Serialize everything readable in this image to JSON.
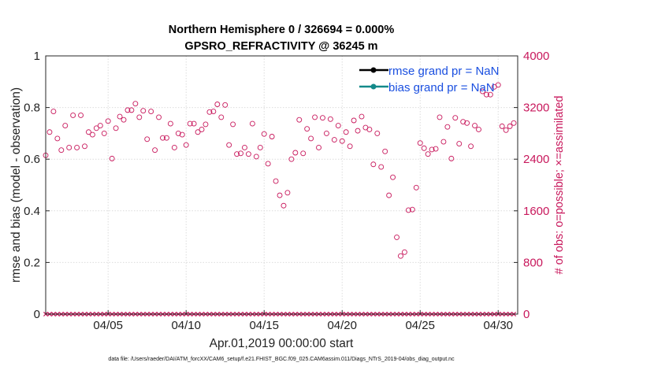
{
  "title_line1": "Northern Hemisphere 0 / 326694 = 0.000%",
  "title_line2": "GPSRO_REFRACTIVITY @ 36245 m",
  "footer": "data file: /Users/raeder/DAI/ATM_forcXX/CAM6_setup/f.e21.FHIST_BGC.f09_025.CAM6assim.011/Diags_NTrS_2019-04/obs_diag_output.nc",
  "chart_data": {
    "type": "scatter",
    "xlabel": "Apr.01,2019 00:00:00 start",
    "ylabel": "rmse and bias (model - observation)",
    "ylabel_right": "# of obs: o=possible; ×=assimilated",
    "xlim": [
      0.5,
      30.75
    ],
    "ylim": [
      0,
      1
    ],
    "ylim_right": [
      0,
      4000
    ],
    "x_ticks": [
      4.5,
      9.5,
      14.5,
      19.5,
      24.5,
      29.5
    ],
    "x_tick_labels": [
      "04/05",
      "04/10",
      "04/15",
      "04/20",
      "04/25",
      "04/30"
    ],
    "y_ticks": [
      0,
      0.2,
      0.4,
      0.6,
      0.8,
      1
    ],
    "y_tick_labels": [
      "0",
      "0.2",
      "0.4",
      "0.6",
      "0.8",
      "1"
    ],
    "y_ticks_right": [
      0,
      800,
      1600,
      2400,
      3200,
      4000
    ],
    "y_tick_labels_right": [
      "0",
      "800",
      "1600",
      "2400",
      "3200",
      "4000"
    ],
    "legend": [
      {
        "label": "rmse grand pr = NaN",
        "color": "#000000"
      },
      {
        "label": "bias grand pr = NaN",
        "color": "#138a8a"
      }
    ],
    "series": [
      {
        "name": "obs possible",
        "marker": "circle",
        "color": "#c8185c",
        "axis": "right",
        "x": [
          0.5,
          0.75,
          1,
          1.25,
          1.5,
          1.75,
          2,
          2.25,
          2.5,
          2.75,
          3,
          3.25,
          3.5,
          3.75,
          4,
          4.25,
          4.5,
          4.75,
          5,
          5.25,
          5.5,
          5.75,
          6,
          6.25,
          6.5,
          6.75,
          7,
          7.25,
          7.5,
          7.75,
          8,
          8.25,
          8.5,
          8.75,
          9,
          9.25,
          9.5,
          9.75,
          10,
          10.25,
          10.5,
          10.75,
          11,
          11.25,
          11.5,
          11.75,
          12,
          12.25,
          12.5,
          12.75,
          13,
          13.25,
          13.5,
          13.75,
          14,
          14.25,
          14.5,
          14.75,
          15,
          15.25,
          15.5,
          15.75,
          16,
          16.25,
          16.5,
          16.75,
          17,
          17.25,
          17.5,
          17.75,
          18,
          18.25,
          18.5,
          18.75,
          19,
          19.25,
          19.5,
          19.75,
          20,
          20.25,
          20.5,
          20.75,
          21,
          21.25,
          21.5,
          21.75,
          22,
          22.25,
          22.5,
          22.75,
          23,
          23.25,
          23.5,
          23.75,
          24,
          24.25,
          24.5,
          24.75,
          25,
          25.25,
          25.5,
          25.75,
          26,
          26.25,
          26.5,
          26.75,
          27,
          27.25,
          27.5,
          27.75,
          28,
          28.25,
          28.5,
          28.75,
          29,
          29.25,
          29.5,
          29.75,
          30,
          30.25,
          30.5
        ],
        "values": [
          2460,
          2820,
          3140,
          2720,
          2540,
          2920,
          2580,
          3080,
          2580,
          3080,
          2600,
          2820,
          2780,
          2880,
          2920,
          2800,
          2990,
          2410,
          2880,
          3060,
          3010,
          3160,
          3160,
          3260,
          3050,
          3150,
          2710,
          3140,
          2540,
          3050,
          2730,
          2730,
          2950,
          2580,
          2800,
          2780,
          2620,
          2950,
          2950,
          2820,
          2860,
          2940,
          3130,
          3140,
          3250,
          3050,
          3240,
          2620,
          2940,
          2480,
          2490,
          2580,
          2480,
          2950,
          2440,
          2580,
          2790,
          2330,
          2750,
          2060,
          1840,
          1680,
          1880,
          2400,
          2500,
          3010,
          2490,
          2870,
          2720,
          3050,
          2580,
          3040,
          2800,
          3020,
          2700,
          2920,
          2680,
          2820,
          2600,
          3000,
          2840,
          3060,
          2890,
          2860,
          2320,
          2800,
          2280,
          2520,
          1840,
          2120,
          1190,
          900,
          960,
          1610,
          1620,
          1960,
          2650,
          2570,
          2480,
          2550,
          2560,
          3050,
          2670,
          2900,
          2410,
          3040,
          2640,
          2980,
          2960,
          2600,
          2920,
          2860,
          3450,
          3400,
          3400,
          3520,
          3550,
          2910,
          2850,
          2910,
          2960
        ]
      },
      {
        "name": "obs assimilated",
        "marker": "x",
        "color": "#c8185c",
        "axis": "right",
        "x": [
          0.5,
          0.75,
          1,
          1.25,
          1.5,
          1.75,
          2,
          2.25,
          2.5,
          2.75,
          3,
          3.25,
          3.5,
          3.75,
          4,
          4.25,
          4.5,
          4.75,
          5,
          5.25,
          5.5,
          5.75,
          6,
          6.25,
          6.5,
          6.75,
          7,
          7.25,
          7.5,
          7.75,
          8,
          8.25,
          8.5,
          8.75,
          9,
          9.25,
          9.5,
          9.75,
          10,
          10.25,
          10.5,
          10.75,
          11,
          11.25,
          11.5,
          11.75,
          12,
          12.25,
          12.5,
          12.75,
          13,
          13.25,
          13.5,
          13.75,
          14,
          14.25,
          14.5,
          14.75,
          15,
          15.25,
          15.5,
          15.75,
          16,
          16.25,
          16.5,
          16.75,
          17,
          17.25,
          17.5,
          17.75,
          18,
          18.25,
          18.5,
          18.75,
          19,
          19.25,
          19.5,
          19.75,
          20,
          20.25,
          20.5,
          20.75,
          21,
          21.25,
          21.5,
          21.75,
          22,
          22.25,
          22.5,
          22.75,
          23,
          23.25,
          23.5,
          23.75,
          24,
          24.25,
          24.5,
          24.75,
          25,
          25.25,
          25.5,
          25.75,
          26,
          26.25,
          26.5,
          26.75,
          27,
          27.25,
          27.5,
          27.75,
          28,
          28.25,
          28.5,
          28.75,
          29,
          29.25,
          29.5,
          29.75,
          30,
          30.25,
          30.5
        ],
        "values": [
          0,
          0,
          0,
          0,
          0,
          0,
          0,
          0,
          0,
          0,
          0,
          0,
          0,
          0,
          0,
          0,
          0,
          0,
          0,
          0,
          0,
          0,
          0,
          0,
          0,
          0,
          0,
          0,
          0,
          0,
          0,
          0,
          0,
          0,
          0,
          0,
          0,
          0,
          0,
          0,
          0,
          0,
          0,
          0,
          0,
          0,
          0,
          0,
          0,
          0,
          0,
          0,
          0,
          0,
          0,
          0,
          0,
          0,
          0,
          0,
          0,
          0,
          0,
          0,
          0,
          0,
          0,
          0,
          0,
          0,
          0,
          0,
          0,
          0,
          0,
          0,
          0,
          0,
          0,
          0,
          0,
          0,
          0,
          0,
          0,
          0,
          0,
          0,
          0,
          0,
          0,
          0,
          0,
          0,
          0,
          0,
          0,
          0,
          0,
          0,
          0,
          0,
          0,
          0,
          0,
          0,
          0,
          0,
          0,
          0,
          0,
          0,
          0,
          0,
          0,
          0,
          0,
          0,
          0,
          0,
          0
        ]
      }
    ]
  }
}
